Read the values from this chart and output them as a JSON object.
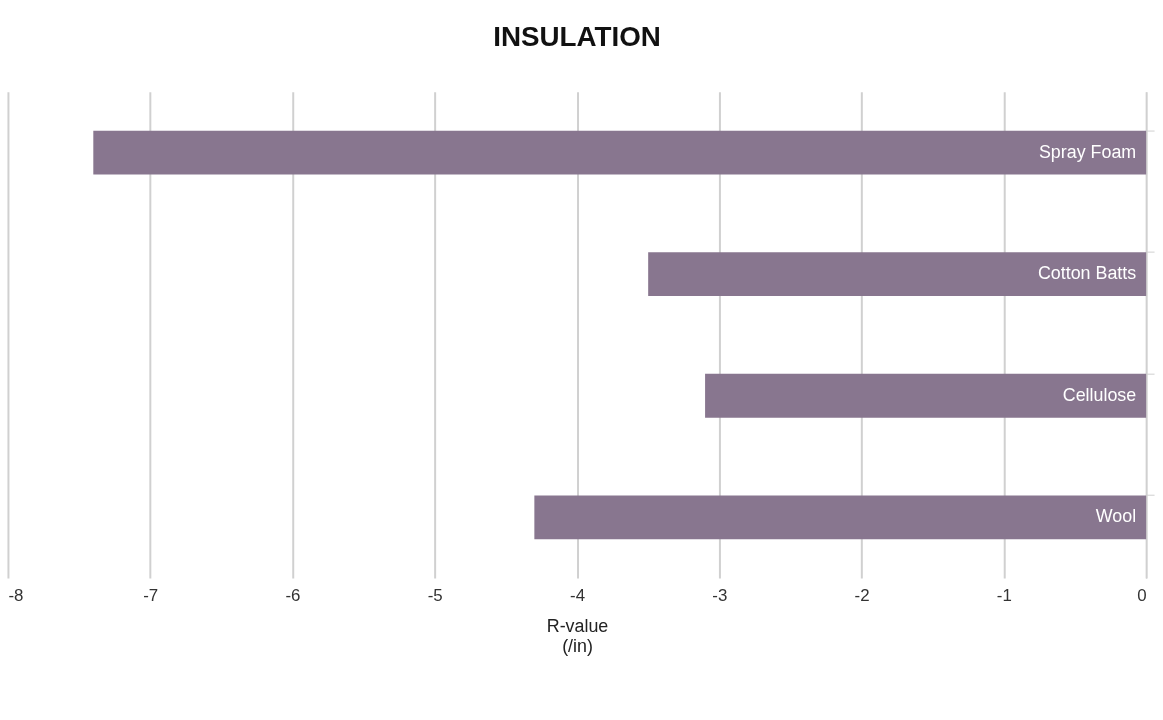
{
  "chart_data": {
    "type": "bar",
    "orientation": "horizontal",
    "title": "INSULATION",
    "xlabel": "R-value\n(/in)",
    "categories": [
      "Spray Foam",
      "Cotton Batts",
      "Cellulose",
      "Wool"
    ],
    "values": [
      -7.4,
      -3.5,
      -3.1,
      -4.3
    ],
    "color": "#88768f",
    "xlim": [
      -8,
      0
    ],
    "xticks": [
      -8,
      -7,
      -6,
      -5,
      -4,
      -3,
      -2,
      -1,
      0
    ],
    "grid": "x",
    "tick_labels": "x"
  }
}
